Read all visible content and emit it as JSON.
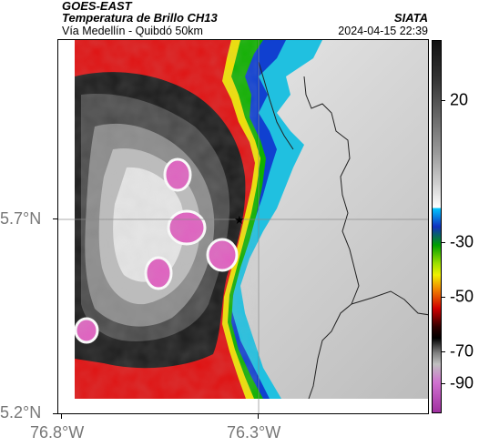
{
  "header": {
    "satellite": "GOES-EAST",
    "product": "Temperatura de Brillo CH13",
    "region": "Vía Medellín - Quibdó 50km",
    "org": "SIATA",
    "datetime": "2024-04-15 22:39"
  },
  "axes": {
    "x_ticks": [
      "76.8°W",
      "76.3°W"
    ],
    "y_ticks": [
      "5.7°N",
      "5.2°N"
    ]
  },
  "colorbar": {
    "labels": [
      "20",
      "-30",
      "-50",
      "-70",
      "-90"
    ]
  },
  "map": {
    "marker": "star-icon",
    "colors": {
      "magenta": "#e060c0",
      "red": "#e01010",
      "yellow": "#f0e000",
      "green": "#10b000",
      "blue": "#1040d0",
      "cyan": "#20c0e0"
    }
  }
}
